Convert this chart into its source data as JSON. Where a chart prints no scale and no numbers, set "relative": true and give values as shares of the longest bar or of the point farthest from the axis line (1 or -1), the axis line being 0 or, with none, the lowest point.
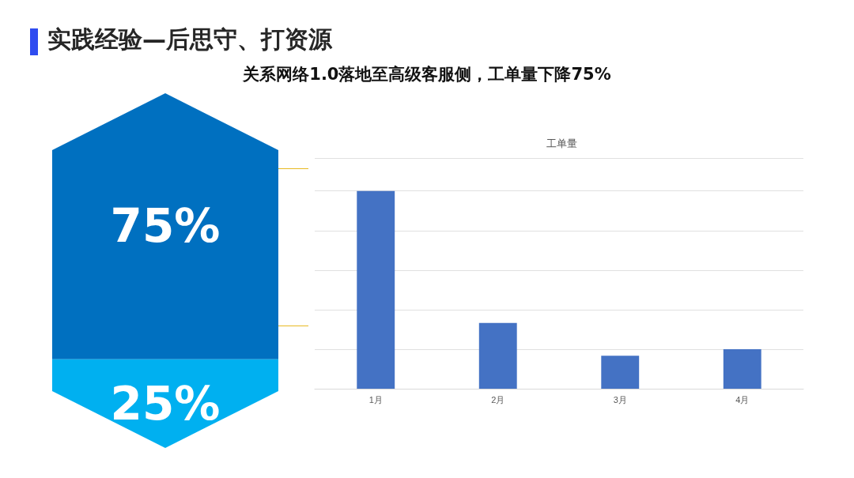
{
  "chart_data": [
    {
      "type": "other",
      "title": "实践经验—后思守、打资源",
      "subtitle": "关系网络1.0落地至高级客服侧，工单量下降75%",
      "values": [
        75,
        25
      ],
      "colors": [
        "#0070c0",
        "#00b0f0"
      ],
      "value_labels": [
        "75%",
        "25%"
      ]
    },
    {
      "type": "bar",
      "title": "工单量",
      "categories": [
        "1月",
        "2月",
        "3月",
        "4月"
      ],
      "values": [
        1,
        0.333,
        0.167,
        0.2
      ],
      "color": "#4472c4",
      "relative": true,
      "grid": true
    }
  ]
}
